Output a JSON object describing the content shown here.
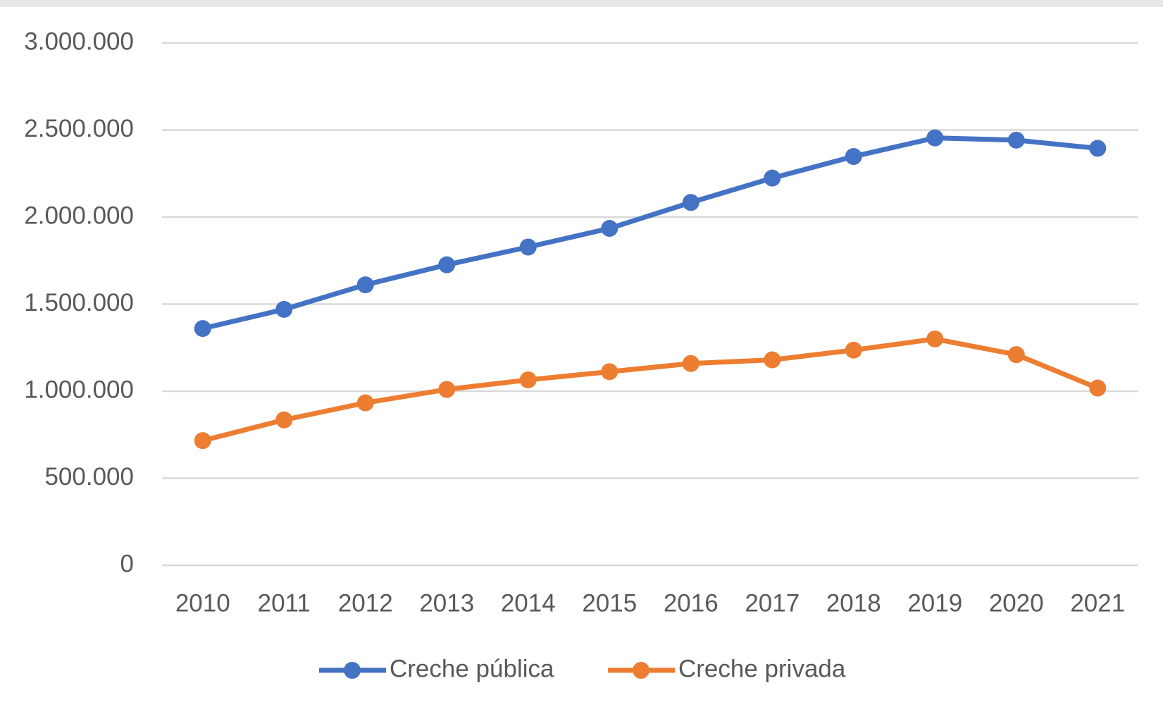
{
  "chart_data": {
    "type": "line",
    "categories": [
      "2010",
      "2011",
      "2012",
      "2013",
      "2014",
      "2015",
      "2016",
      "2017",
      "2018",
      "2019",
      "2020",
      "2021"
    ],
    "series": [
      {
        "name": "Creche pública",
        "color": "#4472c4",
        "values": [
          1360000,
          1470000,
          1611000,
          1726000,
          1828000,
          1935000,
          2084000,
          2224000,
          2348000,
          2455000,
          2442000,
          2395000
        ]
      },
      {
        "name": "Creche privada",
        "color": "#ed7d31",
        "values": [
          716000,
          835000,
          933000,
          1010000,
          1065000,
          1112000,
          1159000,
          1180000,
          1236000,
          1300000,
          1210000,
          1018000
        ]
      }
    ],
    "ylim": [
      0,
      3000000
    ],
    "yticks": [
      0,
      {
        "value": 500000,
        "label": "500.000"
      },
      {
        "value": 1000000,
        "label": "1.000.000"
      },
      {
        "value": 1500000,
        "label": "1.500.000"
      },
      {
        "value": 2000000,
        "label": "2.000.000"
      },
      {
        "value": 2500000,
        "label": "2.500.000"
      },
      {
        "value": 3000000,
        "label": "3.000.000"
      }
    ],
    "grid": true,
    "legend": "bottom"
  }
}
